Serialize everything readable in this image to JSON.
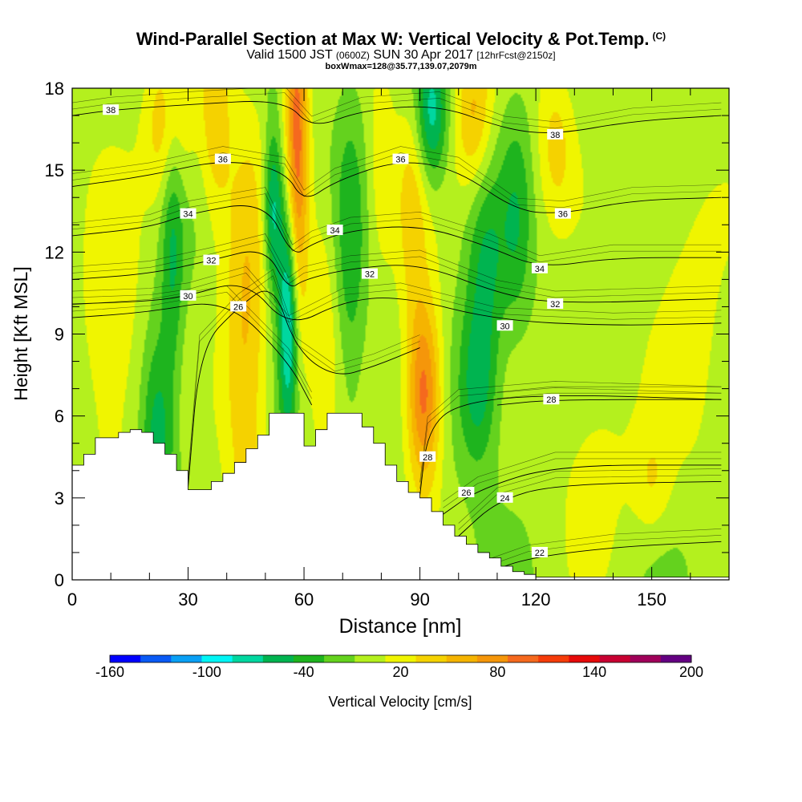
{
  "title": {
    "main": "Wind-Parallel Section at Max W: Vertical Velocity & Pot.Temp.",
    "main_suffix": "(C)",
    "valid_prefix": "Valid 1500 JST",
    "valid_utc": "(0600Z)",
    "valid_date": "SUN 30 Apr 2017",
    "forecast": "[12hrFcst@2150z]",
    "box": "boxWmax=128@35.77,139.07,2079m"
  },
  "chart_data": {
    "type": "heatmap",
    "xlabel": "Distance [nm]",
    "ylabel": "Height [Kft MSL]",
    "xlim": [
      0,
      170
    ],
    "ylim": [
      0,
      18
    ],
    "x_ticks": [
      0,
      30,
      60,
      90,
      120,
      150
    ],
    "y_ticks": [
      0,
      3,
      6,
      9,
      12,
      15,
      18
    ],
    "colorbar": {
      "label": "Vertical Velocity [cm/s]",
      "range": [
        -160,
        200
      ],
      "step": 20,
      "tick_labels": [
        -160,
        -100,
        -40,
        20,
        80,
        140,
        200
      ],
      "colors": [
        "#0000ff",
        "#0a5af5",
        "#0aa0f5",
        "#00f5f5",
        "#00d7a0",
        "#00b450",
        "#1eb41e",
        "#64d21e",
        "#b4f01e",
        "#f0f500",
        "#f5d200",
        "#f5b400",
        "#f5960a",
        "#f5691e",
        "#f53c0a",
        "#e60a0a",
        "#c80032",
        "#a0005a",
        "#640082"
      ]
    },
    "terrain_profile": {
      "x": [
        0,
        3,
        6,
        9,
        12,
        15,
        18,
        21,
        24,
        27,
        30,
        33,
        36,
        39,
        42,
        45,
        48,
        51,
        54,
        57,
        60,
        63,
        66,
        69,
        72,
        75,
        78,
        81,
        84,
        87,
        90,
        93,
        96,
        99,
        102,
        105,
        108,
        111,
        114,
        117,
        120,
        123,
        126,
        129,
        132,
        135,
        138,
        141,
        144,
        147,
        150,
        153,
        156,
        159,
        162,
        165,
        168
      ],
      "height_kft": [
        4.2,
        4.6,
        5.2,
        5.2,
        5.4,
        5.5,
        5.4,
        5.0,
        4.6,
        4.0,
        3.3,
        3.3,
        3.6,
        3.9,
        4.3,
        4.8,
        5.3,
        6.1,
        6.1,
        6.1,
        4.9,
        5.5,
        6.1,
        6.1,
        6.1,
        5.6,
        5.0,
        4.2,
        3.6,
        3.2,
        3.0,
        2.5,
        2.0,
        1.6,
        1.3,
        1.0,
        0.8,
        0.5,
        0.3,
        0.2,
        0.1,
        0.1,
        0.1,
        0.1,
        0.1,
        0.1,
        0.1,
        0.1,
        0.1,
        0.1,
        0.1,
        0.1,
        0.1,
        0.1,
        0.1,
        0.1,
        0.1
      ]
    },
    "vertical_velocity_features": [
      {
        "x": 10,
        "y": 8.5,
        "wx": 8,
        "wy": 6,
        "value": 35
      },
      {
        "x": 22,
        "y": 5.0,
        "wx": 4,
        "wy": 4,
        "value": -60
      },
      {
        "x": 26,
        "y": 13.0,
        "wx": 3,
        "wy": 6,
        "value": -50
      },
      {
        "x": 25,
        "y": 16.5,
        "wx": 6,
        "wy": 3,
        "value": 60
      },
      {
        "x": 45,
        "y": 8.5,
        "wx": 6,
        "wy": 8,
        "value": 60
      },
      {
        "x": 37,
        "y": 17,
        "wx": 4,
        "wy": 4,
        "value": 50
      },
      {
        "x": 58,
        "y": 16,
        "wx": 3,
        "wy": 7,
        "value": 110
      },
      {
        "x": 56,
        "y": 10,
        "wx": 2.5,
        "wy": 4.5,
        "value": -110
      },
      {
        "x": 52,
        "y": 13.5,
        "wx": 2.5,
        "wy": 3,
        "value": -85
      },
      {
        "x": 65,
        "y": 9.5,
        "wx": 4,
        "wy": 5,
        "value": 30
      },
      {
        "x": 72,
        "y": 11.5,
        "wx": 4,
        "wy": 6,
        "value": -35
      },
      {
        "x": 80,
        "y": 15,
        "wx": 4,
        "wy": 4,
        "value": 30
      },
      {
        "x": 91,
        "y": 6.8,
        "wx": 4.5,
        "wy": 3.5,
        "value": 110
      },
      {
        "x": 88,
        "y": 13.5,
        "wx": 4,
        "wy": 4,
        "value": 40
      },
      {
        "x": 93,
        "y": 17,
        "wx": 4,
        "wy": 2.5,
        "value": -75
      },
      {
        "x": 104,
        "y": 17,
        "wx": 5,
        "wy": 3,
        "value": 60
      },
      {
        "x": 105,
        "y": 7.0,
        "wx": 5,
        "wy": 3,
        "value": -55
      },
      {
        "x": 107,
        "y": 11.5,
        "wx": 5,
        "wy": 4,
        "value": -45
      },
      {
        "x": 115,
        "y": 13,
        "wx": 4,
        "wy": 4,
        "value": -35
      },
      {
        "x": 125,
        "y": 16,
        "wx": 5,
        "wy": 3,
        "value": 40
      },
      {
        "x": 135,
        "y": 4.5,
        "wx": 10,
        "wy": 4,
        "value": 25
      },
      {
        "x": 160,
        "y": 10,
        "wx": 10,
        "wy": 6,
        "value": 25
      },
      {
        "x": 150,
        "y": 3.5,
        "wx": 5,
        "wy": 2,
        "value": 30
      }
    ],
    "isentropes": [
      {
        "label": "22",
        "label_at": [
          121,
          1.0
        ],
        "points": [
          [
            108,
            0.3
          ],
          [
            118,
            0.8
          ],
          [
            140,
            1.2
          ],
          [
            168,
            1.4
          ]
        ]
      },
      {
        "label": "24",
        "label_at": [
          112,
          3.0
        ],
        "points": [
          [
            100,
            1.6
          ],
          [
            110,
            2.9
          ],
          [
            125,
            3.5
          ],
          [
            168,
            3.6
          ]
        ]
      },
      {
        "label": "26",
        "label_at": [
          102,
          3.2
        ],
        "points": [
          [
            96,
            2.4
          ],
          [
            105,
            3.3
          ],
          [
            125,
            4.2
          ],
          [
            168,
            4.2
          ]
        ]
      },
      {
        "label": "28",
        "label_at": [
          92,
          4.5
        ],
        "points": [
          [
            90,
            3.1
          ],
          [
            92,
            5.5
          ],
          [
            100,
            6.5
          ],
          [
            125,
            6.8
          ],
          [
            168,
            6.6
          ]
        ]
      },
      {
        "label": "28",
        "label_at": [
          124,
          6.6
        ],
        "points": [
          [
            110,
            6.4
          ],
          [
            124,
            6.6
          ],
          [
            168,
            6.6
          ]
        ]
      },
      {
        "label": "26",
        "label_at": [
          43,
          10.0
        ],
        "points": [
          [
            30,
            3.4
          ],
          [
            33,
            8.5
          ],
          [
            43,
            10.0
          ],
          [
            52,
            10.9
          ],
          [
            58,
            8.4
          ],
          [
            68,
            7.4
          ],
          [
            78,
            7.8
          ],
          [
            90,
            8.5
          ]
        ]
      },
      {
        "label": "28",
        "label_at": [
          0,
          0
        ],
        "points": [
          [
            0,
            9.6
          ],
          [
            20,
            9.8
          ],
          [
            40,
            10.3
          ],
          [
            56,
            8.0
          ],
          [
            62,
            6.4
          ]
        ]
      },
      {
        "label": "30",
        "label_at": [
          30,
          10.4
        ],
        "points": [
          [
            0,
            10.1
          ],
          [
            20,
            10.2
          ],
          [
            30,
            10.4
          ],
          [
            45,
            11.0
          ],
          [
            56,
            9.2
          ],
          [
            70,
            10.2
          ],
          [
            85,
            10.4
          ],
          [
            110,
            9.5
          ],
          [
            140,
            9.3
          ],
          [
            168,
            9.4
          ]
        ]
      },
      {
        "label": "30",
        "label_at": [
          112,
          9.3
        ],
        "points": [
          [
            0,
            0
          ],
          [
            0,
            0
          ]
        ]
      },
      {
        "label": "32",
        "label_at": [
          36,
          11.7
        ],
        "points": [
          [
            0,
            11.0
          ],
          [
            20,
            11.2
          ],
          [
            36,
            11.7
          ],
          [
            50,
            12.2
          ],
          [
            56,
            10.6
          ],
          [
            60,
            11.0
          ],
          [
            72,
            11.4
          ],
          [
            90,
            11.6
          ],
          [
            110,
            10.5
          ],
          [
            125,
            10.1
          ],
          [
            168,
            10.3
          ]
        ]
      },
      {
        "label": "32",
        "label_at": [
          77,
          11.2
        ],
        "points": [
          [
            0,
            0
          ],
          [
            0,
            0
          ]
        ]
      },
      {
        "label": "32",
        "label_at": [
          125,
          10.1
        ],
        "points": [
          [
            0,
            0
          ],
          [
            0,
            0
          ]
        ]
      },
      {
        "label": "34",
        "label_at": [
          30,
          13.4
        ],
        "points": [
          [
            0,
            12.6
          ],
          [
            20,
            12.9
          ],
          [
            30,
            13.4
          ],
          [
            50,
            13.9
          ],
          [
            57,
            11.8
          ],
          [
            62,
            12.3
          ],
          [
            72,
            12.8
          ],
          [
            90,
            13.0
          ],
          [
            108,
            12.2
          ],
          [
            121,
            11.4
          ],
          [
            140,
            11.8
          ],
          [
            168,
            11.8
          ]
        ]
      },
      {
        "label": "34",
        "label_at": [
          68,
          12.8
        ],
        "points": [
          [
            0,
            0
          ],
          [
            0,
            0
          ]
        ]
      },
      {
        "label": "34",
        "label_at": [
          121,
          11.4
        ],
        "points": [
          [
            0,
            0
          ],
          [
            0,
            0
          ]
        ]
      },
      {
        "label": "36",
        "label_at": [
          39,
          15.4
        ],
        "points": [
          [
            0,
            14.4
          ],
          [
            20,
            14.8
          ],
          [
            39,
            15.4
          ],
          [
            55,
            15.0
          ],
          [
            60,
            13.8
          ],
          [
            68,
            14.6
          ],
          [
            85,
            15.4
          ],
          [
            100,
            15.0
          ],
          [
            115,
            13.5
          ],
          [
            127,
            13.4
          ],
          [
            145,
            13.9
          ],
          [
            168,
            14.0
          ]
        ]
      },
      {
        "label": "36",
        "label_at": [
          85,
          15.4
        ],
        "points": [
          [
            0,
            0
          ],
          [
            0,
            0
          ]
        ]
      },
      {
        "label": "36",
        "label_at": [
          127,
          13.4
        ],
        "points": [
          [
            0,
            0
          ],
          [
            0,
            0
          ]
        ]
      },
      {
        "label": "38",
        "label_at": [
          10,
          17.2
        ],
        "points": [
          [
            0,
            17.0
          ],
          [
            10,
            17.2
          ],
          [
            30,
            17.4
          ],
          [
            55,
            17.6
          ],
          [
            62,
            16.5
          ],
          [
            75,
            17.2
          ],
          [
            95,
            17.4
          ],
          [
            112,
            16.5
          ],
          [
            125,
            16.3
          ],
          [
            145,
            16.8
          ],
          [
            168,
            17.0
          ]
        ]
      },
      {
        "label": "38",
        "label_at": [
          125,
          16.3
        ],
        "points": [
          [
            0,
            0
          ],
          [
            0,
            0
          ]
        ]
      }
    ]
  }
}
